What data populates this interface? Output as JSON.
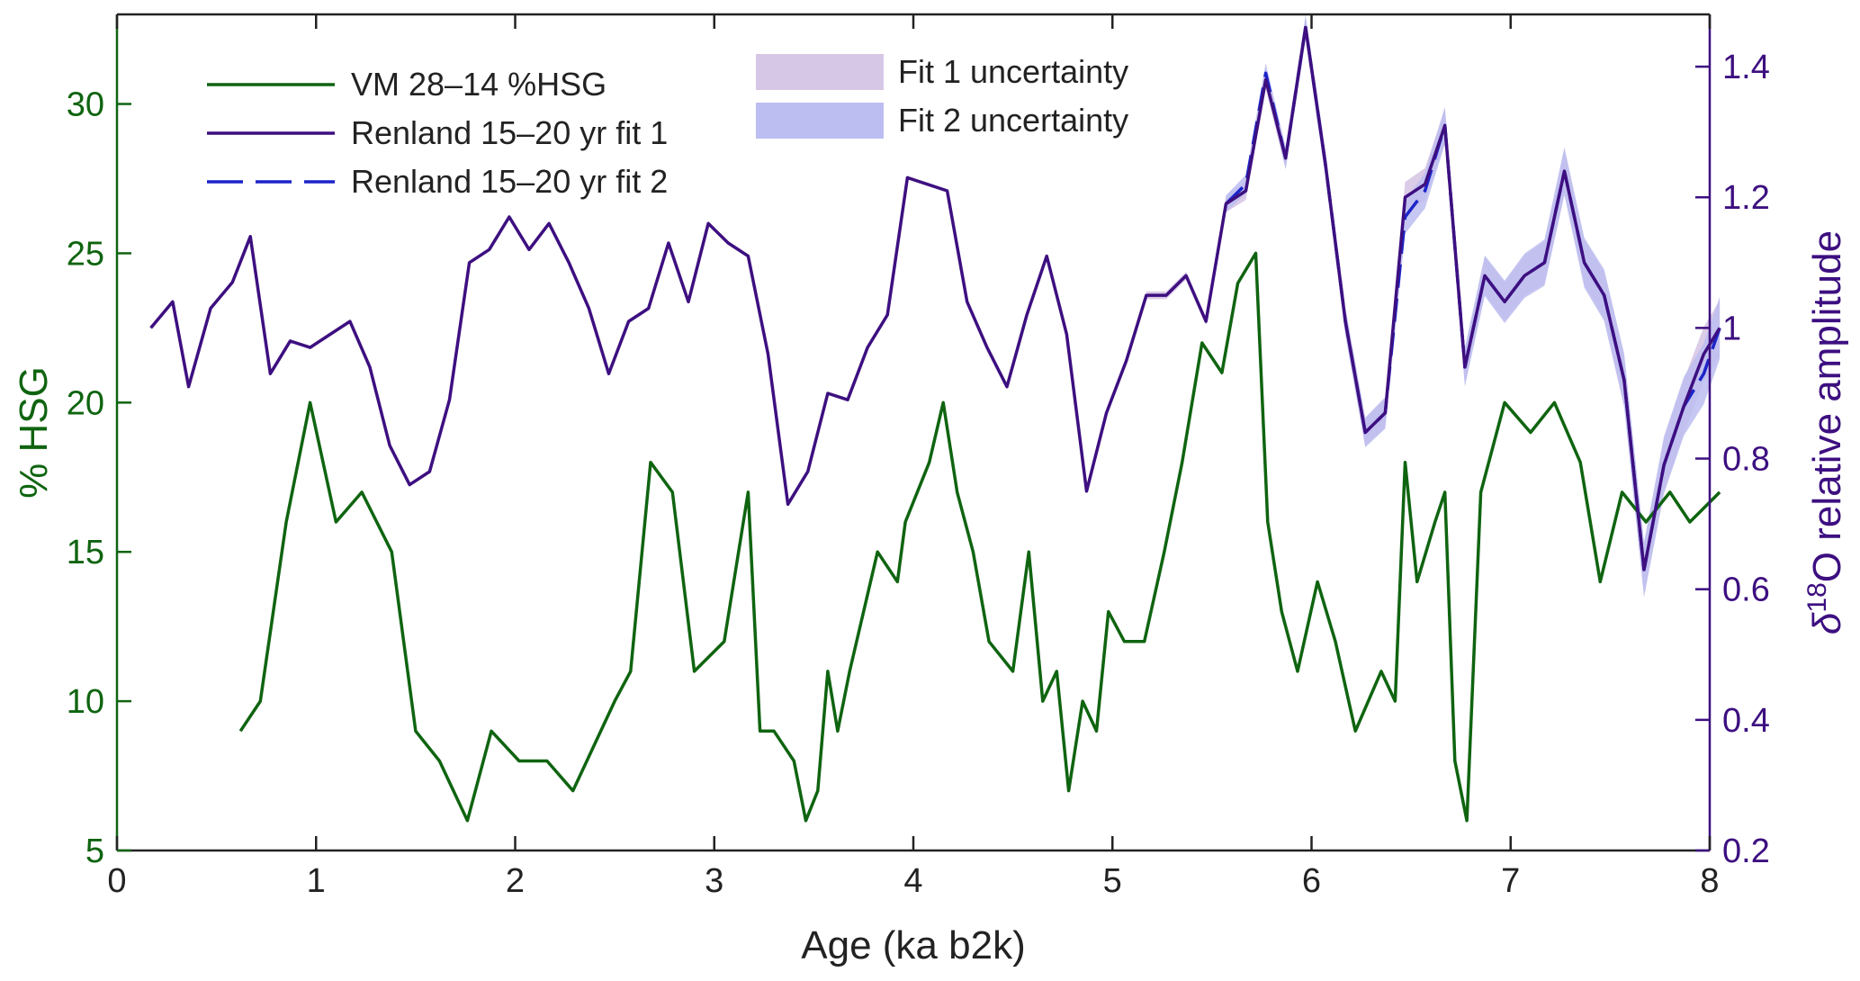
{
  "chart_data": {
    "type": "line",
    "title": "",
    "xlabel": "Age (ka b2k)",
    "ylabel_left": "% HSG",
    "ylabel_right_prefix": "δ",
    "ylabel_right_sup": "18",
    "ylabel_right_suffix": "O relative amplitude",
    "xlim": [
      0,
      8
    ],
    "ylim_left": [
      5,
      33
    ],
    "ylim_right": [
      0.2,
      1.48
    ],
    "x_ticks": [
      "0",
      "1",
      "2",
      "3",
      "4",
      "5",
      "6",
      "7",
      "8"
    ],
    "y_left_ticks": [
      "5",
      "10",
      "15",
      "20",
      "25",
      "30"
    ],
    "y_right_ticks": [
      "0.2",
      "0.4",
      "0.6",
      "0.8",
      "1",
      "1.2",
      "1.4"
    ],
    "grid": false,
    "legend_position": "top-left",
    "colors": {
      "green": "#0f6410",
      "purple": "#3d0f80",
      "blue": "#1b24c8",
      "fit1_band": "#d7c7e6",
      "fit2_band": "#bcbdf0",
      "axis_right": "#3d0f80",
      "axis_left": "#0f6410",
      "text": "#222222"
    },
    "legend": [
      {
        "label": "VM 28–14 %HSG",
        "style": "green-line"
      },
      {
        "label": "Renland 15–20 yr fit 1",
        "style": "purple-line"
      },
      {
        "label": "Renland 15–20 yr fit 2",
        "style": "blue-dashed"
      },
      {
        "label": "Fit 1 uncertainty",
        "style": "fit1-band"
      },
      {
        "label": "Fit 2 uncertainty",
        "style": "fit2-band"
      }
    ],
    "series": [
      {
        "name": "VM 28–14 %HSG",
        "axis": "left",
        "x": [
          0.62,
          0.72,
          0.85,
          0.97,
          1.1,
          1.23,
          1.38,
          1.5,
          1.62,
          1.76,
          1.88,
          2.02,
          2.16,
          2.29,
          2.5,
          2.58,
          2.68,
          2.79,
          2.9,
          3.05,
          3.17,
          3.23,
          3.3,
          3.4,
          3.46,
          3.52,
          3.57,
          3.62,
          3.68,
          3.82,
          3.92,
          3.96,
          4.08,
          4.15,
          4.22,
          4.3,
          4.38,
          4.5,
          4.58,
          4.65,
          4.72,
          4.78,
          4.85,
          4.92,
          4.98,
          5.06,
          5.16,
          5.26,
          5.35,
          5.45,
          5.55,
          5.63,
          5.72,
          5.78,
          5.85,
          5.93,
          6.03,
          6.12,
          6.22,
          6.35,
          6.42,
          6.47,
          6.53,
          6.62,
          6.67,
          6.72,
          6.78,
          6.85,
          6.97,
          7.1,
          7.22,
          7.35,
          7.45,
          7.56,
          7.68,
          7.8,
          7.9,
          8.05
        ],
        "values": [
          9,
          10,
          16,
          20,
          16,
          17,
          15,
          9,
          8,
          6,
          9,
          8,
          8,
          7,
          10,
          11,
          18,
          17,
          11,
          12,
          17,
          9,
          9,
          8,
          6,
          7,
          11,
          9,
          11,
          15,
          14,
          16,
          18,
          20,
          17,
          15,
          12,
          11,
          15,
          10,
          11,
          7,
          10,
          9,
          13,
          12,
          12,
          15,
          18,
          22,
          21,
          24,
          25,
          16,
          13,
          11,
          14,
          12,
          9,
          11,
          10,
          18,
          14,
          16,
          17,
          8,
          6,
          17,
          20,
          19,
          20,
          18,
          14,
          17,
          16,
          17,
          16,
          17
        ]
      },
      {
        "name": "Renland 15–20 yr fit 1",
        "axis": "right",
        "x": [
          0.17,
          0.28,
          0.36,
          0.47,
          0.58,
          0.67,
          0.77,
          0.87,
          0.97,
          1.07,
          1.17,
          1.27,
          1.37,
          1.47,
          1.57,
          1.67,
          1.77,
          1.87,
          1.97,
          2.07,
          2.17,
          2.27,
          2.37,
          2.47,
          2.57,
          2.67,
          2.77,
          2.87,
          2.97,
          3.07,
          3.17,
          3.27,
          3.37,
          3.47,
          3.57,
          3.67,
          3.77,
          3.87,
          3.97,
          4.07,
          4.17,
          4.27,
          4.37,
          4.47,
          4.57,
          4.67,
          4.77,
          4.87,
          4.97,
          5.07,
          5.17,
          5.27,
          5.37,
          5.47,
          5.57,
          5.67,
          5.77,
          5.87,
          5.97,
          6.07,
          6.17,
          6.27,
          6.37,
          6.47,
          6.57,
          6.67,
          6.77,
          6.87,
          6.97,
          7.07,
          7.17,
          7.27,
          7.37,
          7.47,
          7.57,
          7.67,
          7.77,
          7.87,
          7.97,
          8.05
        ],
        "values": [
          1.0,
          1.04,
          0.91,
          1.03,
          1.07,
          1.14,
          0.93,
          0.98,
          0.97,
          0.99,
          1.01,
          0.94,
          0.82,
          0.76,
          0.78,
          0.89,
          1.1,
          1.12,
          1.17,
          1.12,
          1.16,
          1.1,
          1.03,
          0.93,
          1.01,
          1.03,
          1.13,
          1.04,
          1.16,
          1.13,
          1.11,
          0.96,
          0.73,
          0.78,
          0.9,
          0.89,
          0.97,
          1.02,
          1.23,
          1.22,
          1.21,
          1.04,
          0.97,
          0.91,
          1.02,
          1.11,
          0.99,
          0.75,
          0.87,
          0.95,
          1.05,
          1.05,
          1.08,
          1.01,
          1.19,
          1.21,
          1.38,
          1.26,
          1.46,
          1.25,
          1.01,
          0.84,
          0.87,
          1.2,
          1.22,
          1.31,
          0.94,
          1.08,
          1.04,
          1.08,
          1.1,
          1.24,
          1.1,
          1.05,
          0.92,
          0.63,
          0.79,
          0.88,
          0.96,
          1.0
        ]
      },
      {
        "name": "Renland 15–20 yr fit 2",
        "axis": "right",
        "x": [
          5.57,
          5.67,
          5.77,
          5.87,
          5.97,
          6.07,
          6.17,
          6.27,
          6.37,
          6.47,
          6.57,
          6.67,
          6.77,
          6.87,
          6.97,
          7.07,
          7.17,
          7.27,
          7.37,
          7.47,
          7.57,
          7.67,
          7.77,
          7.87,
          7.97,
          8.05
        ],
        "values": [
          1.19,
          1.22,
          1.39,
          1.26,
          1.46,
          1.25,
          1.01,
          0.84,
          0.87,
          1.17,
          1.21,
          1.31,
          0.94,
          1.08,
          1.04,
          1.08,
          1.1,
          1.24,
          1.1,
          1.05,
          0.92,
          0.63,
          0.79,
          0.88,
          0.93,
          1.0
        ]
      }
    ]
  }
}
